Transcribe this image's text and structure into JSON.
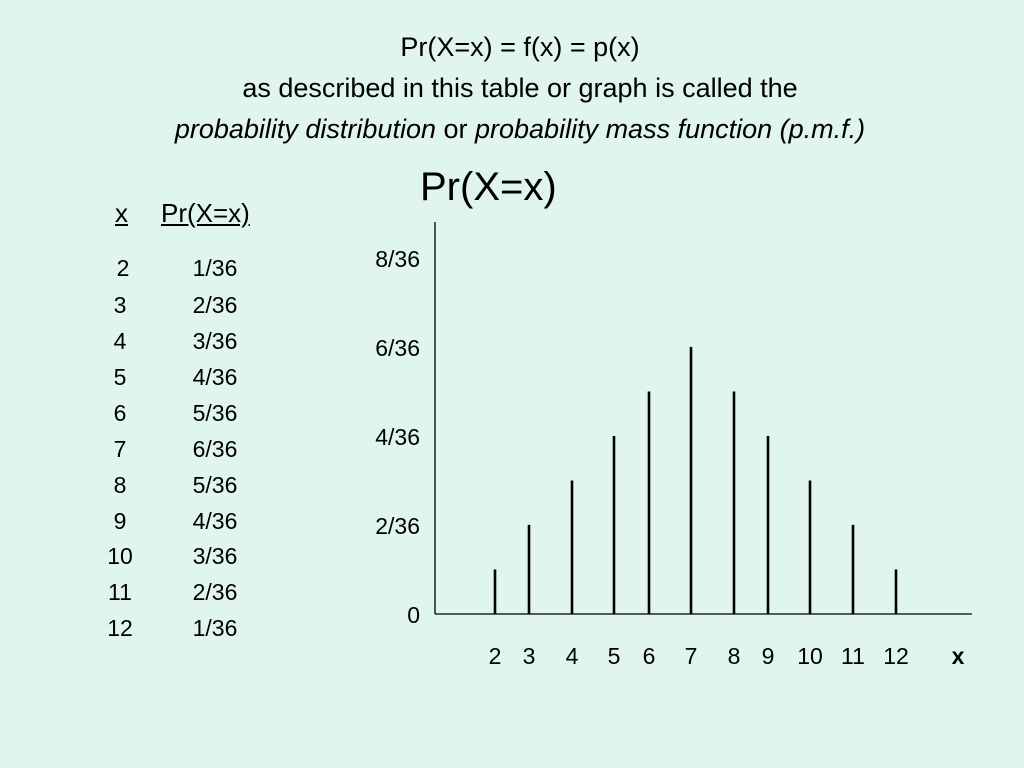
{
  "heading": {
    "line1": "Pr(X=x) = f(x) = p(x)",
    "line2": "as described in this table or graph is called the",
    "line3_term1": "probability distribution",
    "line3_or": " or ",
    "line3_term2": "probability mass function (p.m.f.)"
  },
  "table": {
    "headers": [
      "x",
      "Pr(X=x)"
    ],
    "rows": [
      [
        "2",
        "1/36"
      ],
      [
        "3",
        "2/36"
      ],
      [
        "4",
        "3/36"
      ],
      [
        "5",
        "4/36"
      ],
      [
        "6",
        "5/36"
      ],
      [
        "7",
        "6/36"
      ],
      [
        "8",
        "5/36"
      ],
      [
        "9",
        "4/36"
      ],
      [
        "10",
        "3/36"
      ],
      [
        "11",
        "2/36"
      ],
      [
        "12",
        "1/36"
      ]
    ]
  },
  "chart_data": {
    "type": "bar",
    "title": "Pr(X=x)",
    "xlabel": "x",
    "ylabel": "",
    "categories": [
      "2",
      "3",
      "4",
      "5",
      "6",
      "7",
      "8",
      "9",
      "10",
      "11",
      "12"
    ],
    "values": [
      0.0278,
      0.0556,
      0.0833,
      0.1111,
      0.1389,
      0.1667,
      0.1389,
      0.1111,
      0.0833,
      0.0556,
      0.0278
    ],
    "ylim": [
      0,
      0.2222
    ],
    "yticks": [
      {
        "value": 0,
        "label": "0"
      },
      {
        "value": 0.0556,
        "label": "2/36"
      },
      {
        "value": 0.1111,
        "label": "4/36"
      },
      {
        "value": 0.1667,
        "label": "6/36"
      },
      {
        "value": 0.2222,
        "label": "8/36"
      }
    ],
    "grid": false,
    "legend": "none"
  }
}
